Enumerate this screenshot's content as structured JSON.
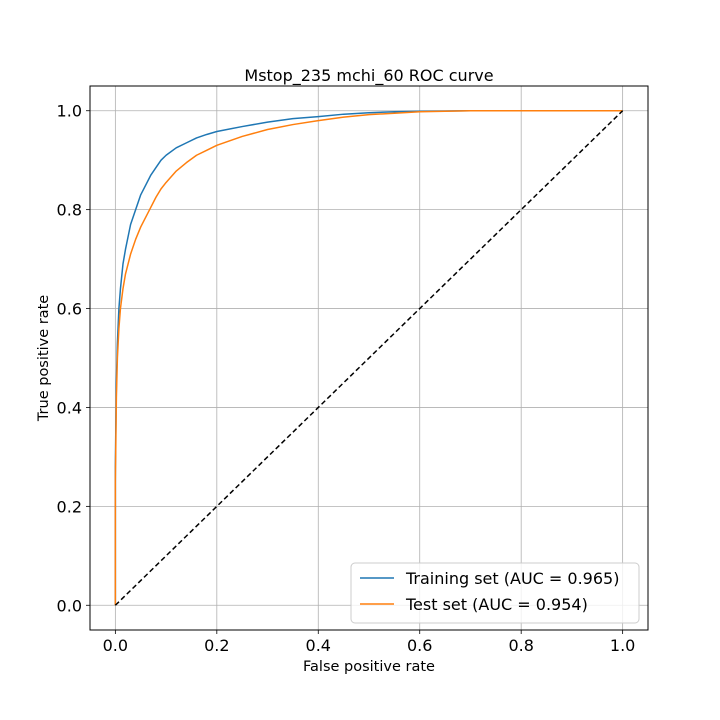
{
  "chart_data": {
    "type": "line",
    "title": "Mstop_235 mchi_60 ROC curve",
    "xlabel": "False positive rate",
    "ylabel": "True positive rate",
    "xlim": [
      -0.05,
      1.05
    ],
    "ylim": [
      -0.05,
      1.05
    ],
    "xticks": [
      "0.0",
      "0.2",
      "0.4",
      "0.6",
      "0.8",
      "1.0"
    ],
    "yticks": [
      "0.0",
      "0.2",
      "0.4",
      "0.6",
      "0.8",
      "1.0"
    ],
    "grid": true,
    "legend_position": "lower-right",
    "series": [
      {
        "name": "Training set (AUC = 0.965)",
        "color": "#1f77b4",
        "x": [
          0.0,
          0.0,
          0.002,
          0.004,
          0.007,
          0.01,
          0.015,
          0.02,
          0.03,
          0.04,
          0.05,
          0.06,
          0.07,
          0.08,
          0.09,
          0.1,
          0.12,
          0.14,
          0.16,
          0.18,
          0.2,
          0.25,
          0.3,
          0.35,
          0.4,
          0.45,
          0.5,
          0.55,
          0.6,
          0.7,
          0.8,
          0.9,
          1.0
        ],
        "y": [
          0.0,
          0.28,
          0.45,
          0.53,
          0.6,
          0.64,
          0.69,
          0.72,
          0.77,
          0.8,
          0.83,
          0.85,
          0.87,
          0.885,
          0.9,
          0.91,
          0.925,
          0.935,
          0.945,
          0.952,
          0.958,
          0.968,
          0.977,
          0.984,
          0.988,
          0.993,
          0.996,
          0.998,
          0.999,
          1.0,
          1.0,
          1.0,
          1.0
        ]
      },
      {
        "name": "Test set (AUC = 0.954)",
        "color": "#ff7f0e",
        "x": [
          0.0,
          0.0,
          0.002,
          0.004,
          0.007,
          0.01,
          0.015,
          0.02,
          0.03,
          0.04,
          0.05,
          0.06,
          0.07,
          0.08,
          0.09,
          0.1,
          0.12,
          0.14,
          0.16,
          0.18,
          0.2,
          0.25,
          0.3,
          0.35,
          0.4,
          0.45,
          0.5,
          0.55,
          0.6,
          0.7,
          0.8,
          0.9,
          1.0
        ],
        "y": [
          0.0,
          0.25,
          0.42,
          0.5,
          0.56,
          0.6,
          0.64,
          0.67,
          0.71,
          0.74,
          0.765,
          0.785,
          0.805,
          0.825,
          0.842,
          0.855,
          0.878,
          0.895,
          0.91,
          0.92,
          0.93,
          0.948,
          0.962,
          0.972,
          0.98,
          0.987,
          0.992,
          0.995,
          0.998,
          1.0,
          1.0,
          1.0,
          1.0
        ]
      }
    ],
    "reference_line": {
      "x": [
        0,
        1
      ],
      "y": [
        0,
        1
      ],
      "style": "dashed",
      "color": "#000000"
    }
  }
}
